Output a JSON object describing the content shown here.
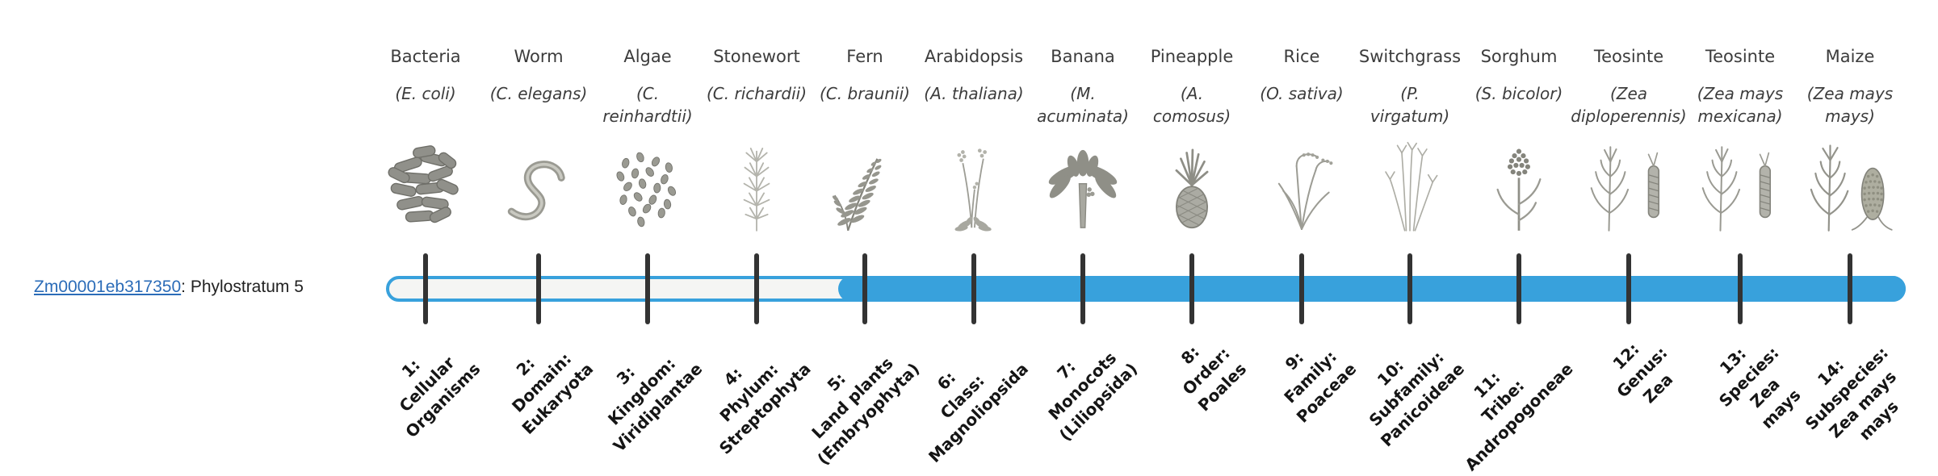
{
  "gene": {
    "id": "Zm00001eb317350",
    "suffix": ": Phylostratum 5",
    "phylostratum": 5
  },
  "columns": [
    {
      "common": "Bacteria",
      "scientific": "(E. coli)",
      "icon": "bacteria-icon"
    },
    {
      "common": "Worm",
      "scientific": "(C. elegans)",
      "icon": "worm-icon"
    },
    {
      "common": "Algae",
      "scientific": "(C.\nreinhardtii)",
      "icon": "algae-icon"
    },
    {
      "common": "Stonewort",
      "scientific": "(C. richardii)",
      "icon": "stonewort-icon"
    },
    {
      "common": "Fern",
      "scientific": "(C. braunii)",
      "icon": "fern-icon"
    },
    {
      "common": "Arabidopsis",
      "scientific": "(A. thaliana)",
      "icon": "arabidopsis-icon"
    },
    {
      "common": "Banana",
      "scientific": "(M.\nacuminata)",
      "icon": "banana-icon"
    },
    {
      "common": "Pineapple",
      "scientific": "(A.\ncomosus)",
      "icon": "pineapple-icon"
    },
    {
      "common": "Rice",
      "scientific": "(O. sativa)",
      "icon": "rice-icon"
    },
    {
      "common": "Switchgrass",
      "scientific": "(P.\nvirgatum)",
      "icon": "switchgrass-icon"
    },
    {
      "common": "Sorghum",
      "scientific": "(S. bicolor)",
      "icon": "sorghum-icon"
    },
    {
      "common": "Teosinte",
      "scientific": "(Zea\ndiploperennis)",
      "icon": "teosinte-icon"
    },
    {
      "common": "Teosinte",
      "scientific": "(Zea mays\nmexicana)",
      "icon": "teosinte-icon"
    },
    {
      "common": "Maize",
      "scientific": "(Zea mays\nmays)",
      "icon": "maize-icon"
    }
  ],
  "strata": [
    "1:\nCellular\nOrganisms",
    "2:\nDomain:\nEukaryota",
    "3:\nKingdom:\nViridiplantae",
    "4:\nPhylum:\nStreptophyta",
    "5:\nLand plants\n(Embryophyta)",
    "6:\nClass:\nMagnoliopsida",
    "7:\nMonocots\n(Liliopsida)",
    "8:\nOrder:\nPoales",
    "9:\nFamily:\nPoaceae",
    "10:\nSubfamily:\nPanicoideae",
    "11:\nTribe:\nAndropogoneae",
    "12:\nGenus:\nZea",
    "13:\nSpecies:\nZea\nmays",
    "14:\nSubspecies:\nZea mays\nmays"
  ],
  "timeline": {
    "filled_from_stratum": 5,
    "num_strata": 14
  },
  "colors": {
    "bar_fill": "#38a1dc",
    "bar_track": "#f5f5f3",
    "tick": "#333333",
    "link": "#2b6cb8",
    "text": "#3c3c3c"
  }
}
